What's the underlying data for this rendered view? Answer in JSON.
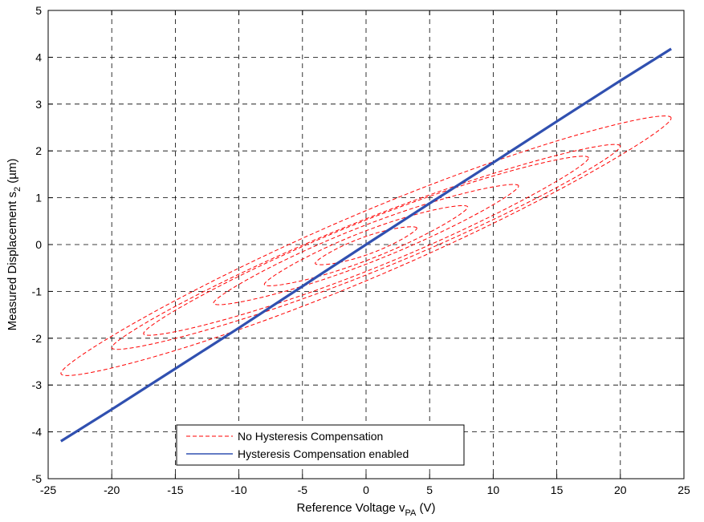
{
  "chart_data": {
    "type": "line",
    "xlabel": {
      "base": "Reference Voltage v",
      "sub": "PA",
      "tail": " (V)"
    },
    "ylabel": {
      "base": "Measured Displacement s",
      "sub": "2",
      "tail": " (µm)"
    },
    "xlim": [
      -25,
      25
    ],
    "ylim": [
      -5,
      5
    ],
    "xticks": [
      -25,
      -20,
      -15,
      -10,
      -5,
      0,
      5,
      10,
      15,
      20,
      25
    ],
    "yticks": [
      -5,
      -4,
      -3,
      -2,
      -1,
      0,
      1,
      2,
      3,
      4,
      5
    ],
    "grid": true,
    "legend_position": "bottom-center",
    "series": [
      {
        "name": "No Hysteresis Compensation",
        "color": "#ff0000",
        "style": "dashed",
        "loops": [
          {
            "amplitude": 24,
            "top": 2.7,
            "bottom": -2.75,
            "half_width": 0.75
          },
          {
            "amplitude": 20,
            "top": 2.1,
            "bottom": -2.2,
            "half_width": 0.6
          },
          {
            "amplitude": 17.5,
            "top": 1.85,
            "bottom": -1.9,
            "half_width": 0.55
          },
          {
            "amplitude": 12,
            "top": 1.25,
            "bottom": -1.25,
            "half_width": 0.42
          },
          {
            "amplitude": 8,
            "top": 0.8,
            "bottom": -0.85,
            "half_width": 0.32
          },
          {
            "amplitude": 4,
            "top": 0.35,
            "bottom": -0.4,
            "half_width": 0.2
          }
        ]
      },
      {
        "name": "Hysteresis Compensation enabled",
        "color": "#3050b0",
        "style": "solid",
        "x": [
          -24,
          -20,
          -15,
          -10,
          -5,
          0,
          5,
          10,
          15,
          20,
          24
        ],
        "y": [
          -4.2,
          -3.52,
          -2.65,
          -1.78,
          -0.89,
          0.0,
          0.88,
          1.75,
          2.63,
          3.5,
          4.18
        ]
      }
    ]
  }
}
